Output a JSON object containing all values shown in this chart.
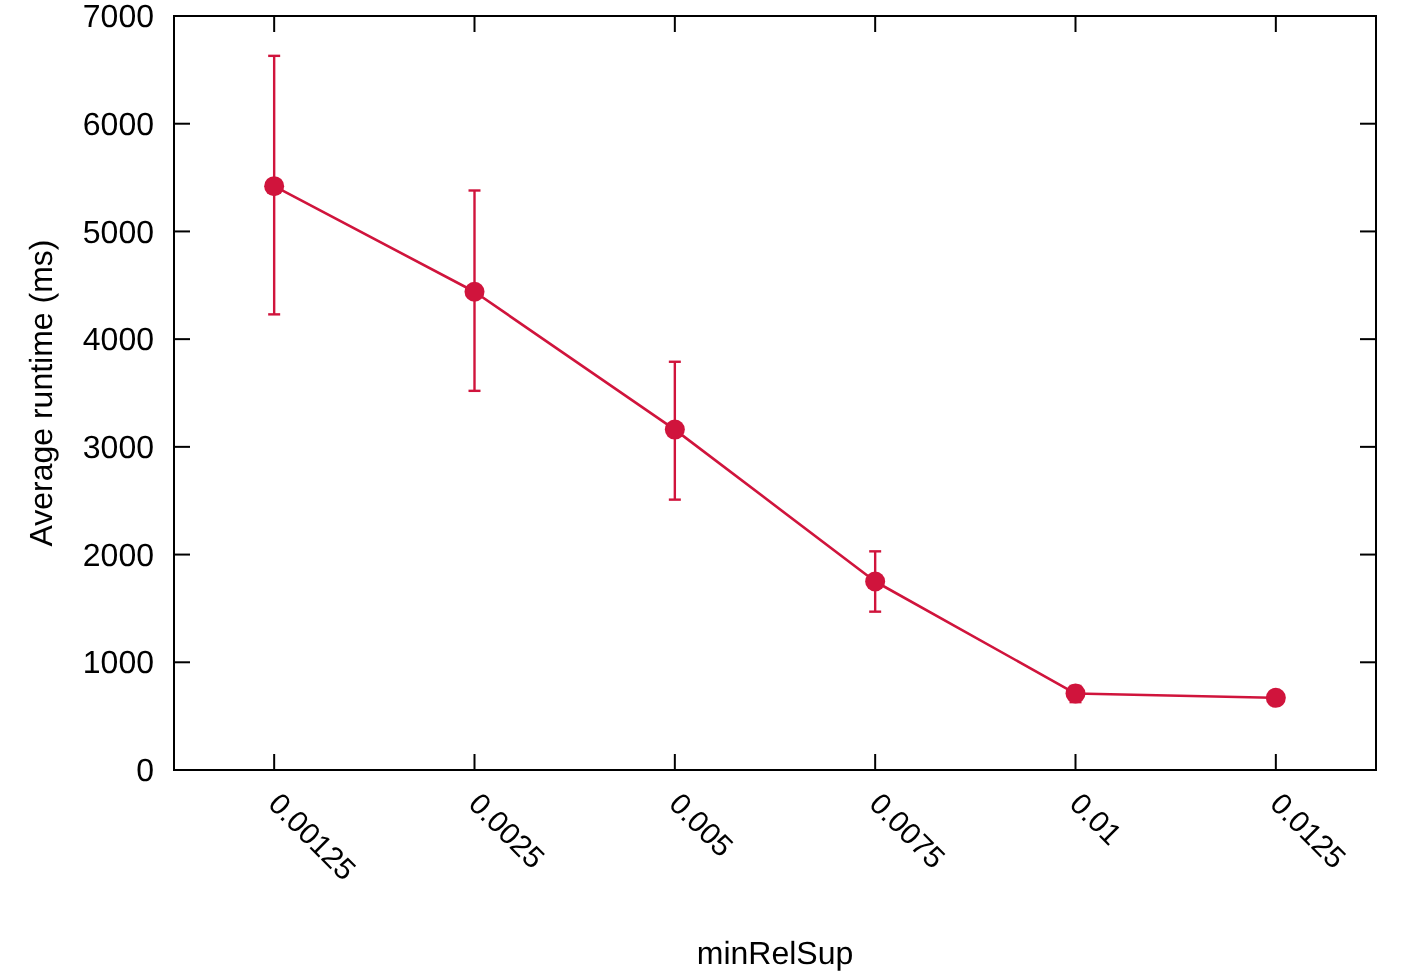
{
  "chart_data": {
    "type": "line",
    "xlabel": "minRelSup",
    "ylabel": "Average runtime (ms)",
    "categories": [
      "0.00125",
      "0.0025",
      "0.005",
      "0.0075",
      "0.01",
      "0.0125"
    ],
    "series": [
      {
        "color": "#d0143c",
        "values": [
          5420,
          4440,
          3160,
          1750,
          710,
          670
        ],
        "errors": [
          [
            4230,
            6630
          ],
          [
            3520,
            5380
          ],
          [
            2510,
            3790
          ],
          [
            1470,
            2030
          ],
          [
            630,
            780
          ],
          null
        ]
      }
    ],
    "ylim": [
      0,
      7000
    ],
    "yticks": [
      0,
      1000,
      2000,
      3000,
      4000,
      5000,
      6000,
      7000
    ],
    "grid": false,
    "marker": "circle",
    "line_style": "solid"
  }
}
